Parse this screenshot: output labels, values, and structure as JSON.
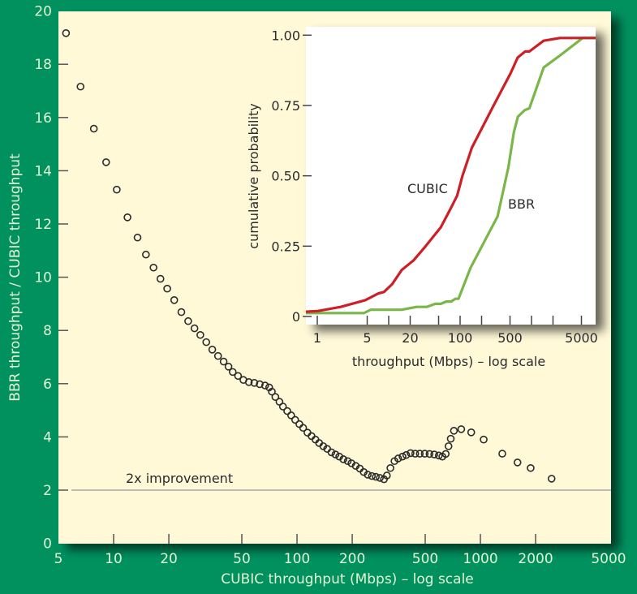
{
  "colors": {
    "background": "#00915f",
    "panel": "#fff9d8",
    "inset": "#ffffff",
    "cubic": "#cc1f26",
    "bbr": "#7ab648",
    "marker": "#2b2b2b",
    "reference_line": "#a8a8a8"
  },
  "chart_data": [
    {
      "type": "scatter",
      "title": "",
      "xlabel": "CUBIC throughput (Mbps) – log scale",
      "ylabel": "BBR throughput / CUBIC throughput",
      "xscale": "log",
      "xlim": [
        5,
        5000
      ],
      "ylim": [
        0,
        20
      ],
      "xticks": [
        "5",
        "10",
        "20",
        "50",
        "100",
        "200",
        "500",
        "1000",
        "2000",
        "5000"
      ],
      "xtick_values": [
        5,
        10,
        20,
        50,
        100,
        200,
        500,
        1000,
        2000,
        5000
      ],
      "yticks": [
        0,
        2,
        4,
        6,
        8,
        10,
        12,
        14,
        16,
        18,
        20
      ],
      "grid": false,
      "reference_line": {
        "y": 2,
        "label": "2x improvement"
      },
      "x": [
        5.5,
        6.6,
        7.8,
        9.1,
        10.4,
        11.9,
        13.5,
        15.0,
        16.5,
        18.0,
        19.6,
        21.4,
        23.4,
        25.5,
        27.6,
        29.7,
        32.0,
        34.5,
        37.1,
        39.8,
        42.3,
        44.6,
        47.7,
        51.0,
        54.6,
        58.5,
        62.6,
        67.0,
        70.5,
        72.9,
        76.2,
        80.2,
        83.8,
        88.5,
        92.9,
        97.7,
        103,
        108,
        114,
        120,
        126,
        132,
        139,
        146,
        154,
        162,
        170,
        179,
        189,
        198,
        209,
        220,
        231,
        243,
        256,
        269,
        283,
        298,
        309,
        323,
        340,
        356,
        376,
        394,
        416,
        441,
        467,
        497,
        528,
        560,
        593,
        620,
        647,
        670,
        689,
        717,
        786,
        891,
        1042,
        1316,
        1593,
        1879,
        2444
      ],
      "y": [
        19.17,
        17.16,
        15.58,
        14.32,
        13.29,
        12.25,
        11.49,
        10.85,
        10.36,
        9.94,
        9.57,
        9.14,
        8.69,
        8.35,
        8.08,
        7.83,
        7.56,
        7.28,
        7.04,
        6.83,
        6.64,
        6.44,
        6.29,
        6.14,
        6.06,
        6.03,
        5.98,
        5.93,
        5.86,
        5.7,
        5.5,
        5.32,
        5.14,
        4.97,
        4.81,
        4.64,
        4.48,
        4.34,
        4.16,
        4.03,
        3.9,
        3.77,
        3.65,
        3.55,
        3.42,
        3.34,
        3.26,
        3.16,
        3.09,
        3.01,
        2.91,
        2.81,
        2.68,
        2.58,
        2.53,
        2.5,
        2.46,
        2.41,
        2.55,
        2.83,
        3.09,
        3.19,
        3.26,
        3.32,
        3.39,
        3.37,
        3.37,
        3.37,
        3.36,
        3.34,
        3.3,
        3.26,
        3.36,
        3.65,
        3.93,
        4.23,
        4.29,
        4.17,
        3.9,
        3.37,
        3.04,
        2.83,
        2.43
      ]
    },
    {
      "type": "line",
      "title": "",
      "xlabel": "throughput (Mbps) – log scale",
      "ylabel": "cumulative probability",
      "xscale": "log",
      "xlim": [
        0.7,
        8000
      ],
      "ylim": [
        0,
        1
      ],
      "xticks": [
        "1",
        "5",
        "20",
        "100",
        "500",
        "5000"
      ],
      "xtick_values": [
        1,
        5,
        20,
        100,
        500,
        5000
      ],
      "minor_xtick_values": [
        10,
        50,
        200,
        1000,
        2000
      ],
      "yticks": [
        "0",
        "0.25",
        "0.50",
        "0.75",
        "1.00"
      ],
      "ytick_values": [
        0,
        0.25,
        0.5,
        0.75,
        1.0
      ],
      "series": [
        {
          "name": "CUBIC",
          "color": "#cc1f26",
          "x": [
            0.69,
            1,
            2.13,
            4.7,
            7.2,
            8.6,
            11.2,
            15.2,
            22.4,
            33,
            53.6,
            76,
            91,
            108,
            146,
            295,
            510,
            640,
            815,
            935,
            1480,
            2500,
            8000
          ],
          "y": [
            0.017,
            0.019,
            0.034,
            0.058,
            0.082,
            0.087,
            0.115,
            0.165,
            0.2,
            0.25,
            0.317,
            0.39,
            0.43,
            0.5,
            0.6,
            0.75,
            0.865,
            0.92,
            0.942,
            0.942,
            0.98,
            0.99,
            0.99
          ]
        },
        {
          "name": "BBR",
          "color": "#7ab648",
          "x": [
            0.69,
            4.5,
            5.6,
            15.2,
            24.6,
            34,
            45,
            53.6,
            64,
            75,
            86,
            95,
            140,
            335,
            475,
            565,
            645,
            800,
            935,
            1480,
            2400,
            5200,
            8000
          ],
          "y": [
            0.012,
            0.012,
            0.024,
            0.024,
            0.034,
            0.034,
            0.045,
            0.045,
            0.053,
            0.053,
            0.063,
            0.063,
            0.173,
            0.356,
            0.53,
            0.654,
            0.71,
            0.733,
            0.74,
            0.885,
            0.924,
            0.99,
            0.99
          ]
        }
      ]
    }
  ]
}
